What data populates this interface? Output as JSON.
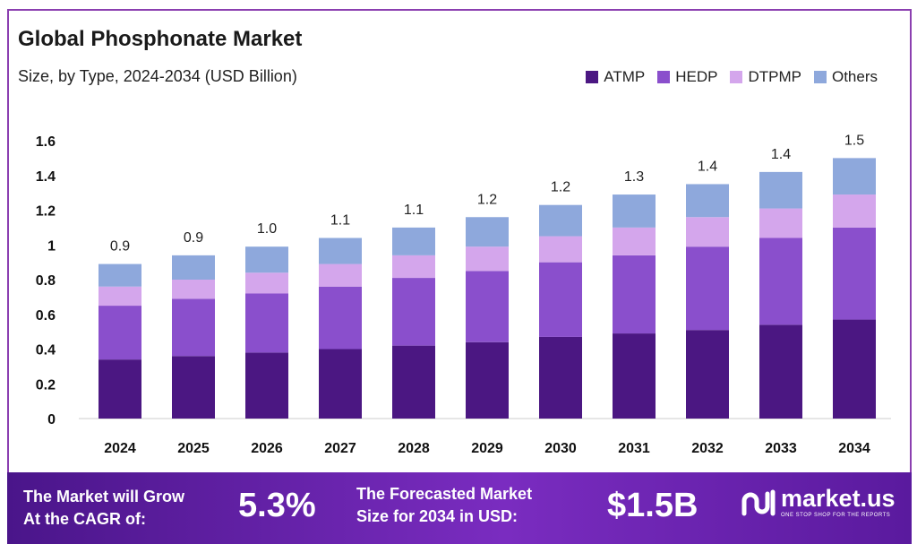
{
  "chart_data": {
    "type": "bar",
    "stacked": true,
    "title": "Global Phosphonate Market",
    "subtitle": "Size, by Type, 2024-2034 (USD Billion)",
    "categories": [
      "2024",
      "2025",
      "2026",
      "2027",
      "2028",
      "2029",
      "2030",
      "2031",
      "2032",
      "2033",
      "2034"
    ],
    "totals_labels": [
      "0.9",
      "0.9",
      "1.0",
      "1.1",
      "1.1",
      "1.2",
      "1.2",
      "1.3",
      "1.4",
      "1.4",
      "1.5"
    ],
    "series": [
      {
        "name": "ATMP",
        "color": "#4b1782",
        "values": [
          0.34,
          0.36,
          0.38,
          0.4,
          0.42,
          0.44,
          0.47,
          0.49,
          0.51,
          0.54,
          0.57
        ]
      },
      {
        "name": "HEDP",
        "color": "#8a4fcc",
        "values": [
          0.31,
          0.33,
          0.34,
          0.36,
          0.39,
          0.41,
          0.43,
          0.45,
          0.48,
          0.5,
          0.53
        ]
      },
      {
        "name": "DTPMP",
        "color": "#d4a6ec",
        "values": [
          0.11,
          0.11,
          0.12,
          0.13,
          0.13,
          0.14,
          0.15,
          0.16,
          0.17,
          0.17,
          0.19
        ]
      },
      {
        "name": "Others",
        "color": "#8ea8dc",
        "values": [
          0.13,
          0.14,
          0.15,
          0.15,
          0.16,
          0.17,
          0.18,
          0.19,
          0.19,
          0.21,
          0.21
        ]
      }
    ],
    "ylim": [
      0,
      1.6
    ],
    "yticks": [
      "0",
      "0.2",
      "0.4",
      "0.6",
      "0.8",
      "1",
      "1.2",
      "1.4",
      "1.6"
    ],
    "grid": false,
    "legend": "top-right"
  },
  "banner": {
    "cagr_text_1": "The Market will Grow",
    "cagr_text_2": "At the CAGR of:",
    "cagr_value": "5.3%",
    "forecast_text_1": "The Forecasted Market",
    "forecast_text_2": "Size for 2034 in USD:",
    "forecast_value": "$1.5B",
    "logo_name": "market.us",
    "logo_tagline": "ONE STOP SHOP FOR THE REPORTS"
  }
}
